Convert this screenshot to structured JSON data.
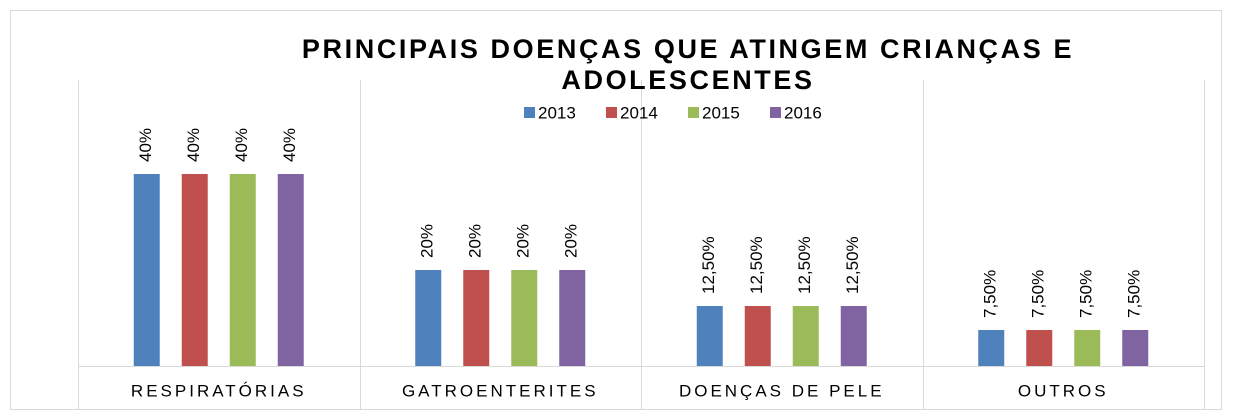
{
  "chart_data": {
    "type": "bar",
    "title": "PRINCIPAIS DOENÇAS QUE ATINGEM CRIANÇAS E ADOLESCENTES",
    "categories": [
      "RESPIRATÓRIAS",
      "GATROENTERITES",
      "DOENÇAS DE PELE",
      "OUTROS"
    ],
    "series": [
      {
        "name": "2013",
        "color": "#4f81bd",
        "values": [
          40,
          20,
          12.5,
          7.5
        ],
        "value_labels": [
          "40%",
          "20%",
          "12,50%",
          "7,50%"
        ]
      },
      {
        "name": "2014",
        "color": "#c0504d",
        "values": [
          40,
          20,
          12.5,
          7.5
        ],
        "value_labels": [
          "40%",
          "20%",
          "12,50%",
          "7,50%"
        ]
      },
      {
        "name": "2015",
        "color": "#9bbb59",
        "values": [
          40,
          20,
          12.5,
          7.5
        ],
        "value_labels": [
          "40%",
          "20%",
          "12,50%",
          "7,50%"
        ]
      },
      {
        "name": "2016",
        "color": "#8064a2",
        "values": [
          40,
          20,
          12.5,
          7.5
        ],
        "value_labels": [
          "40%",
          "20%",
          "12,50%",
          "7,50%"
        ]
      }
    ],
    "legend": "top"
  }
}
